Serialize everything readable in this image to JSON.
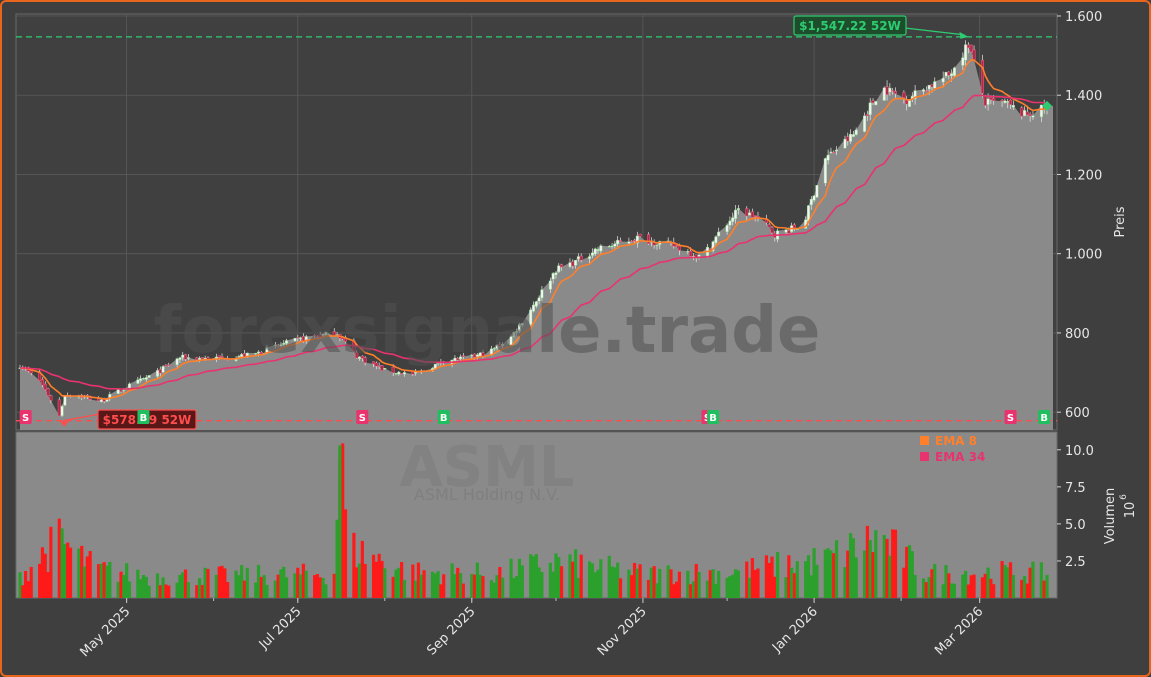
{
  "chart_data": {
    "type": "candlestick",
    "ticker": "ASML",
    "company": "ASML Holding N.V.",
    "watermark": "forexsignale.trade",
    "price_axis": {
      "label": "Preis",
      "ylim": [
        555,
        1605
      ],
      "ticks": [
        600,
        800,
        1000,
        1200,
        1400,
        1600
      ],
      "tick_labels": [
        "600",
        "800",
        "1.000",
        "1.200",
        "1.400",
        "1.600"
      ]
    },
    "volume_axis": {
      "label": "Volumen",
      "multiplier_label": "10",
      "multiplier_exp": "6",
      "ylim": [
        0,
        11.2
      ],
      "ticks": [
        2.5,
        5.0,
        7.5,
        10.0
      ],
      "tick_labels": [
        "2.5",
        "5.0",
        "7.5",
        "10.0"
      ]
    },
    "x_axis": {
      "start": "2025-03-24",
      "end": "2026-03-25",
      "ticks": [
        {
          "date": "2025-05-01",
          "label": "May 2025"
        },
        {
          "date": "2025-07-01",
          "label": "Jul 2025"
        },
        {
          "date": "2025-09-01",
          "label": "Sep 2025"
        },
        {
          "date": "2025-11-01",
          "label": "Nov 2025"
        },
        {
          "date": "2026-01-01",
          "label": "Jan 2026"
        },
        {
          "date": "2026-03-01",
          "label": "Mar 2026"
        }
      ]
    },
    "high_52w": {
      "value": 1547.22,
      "label": "$1,547.22 52W",
      "date": "2026-02-25"
    },
    "low_52w": {
      "value": 578.49,
      "label": "$578.49 52W",
      "date": "2025-04-07"
    },
    "price_keyframes": [
      [
        "2025-03-24",
        718
      ],
      [
        "2025-03-31",
        680
      ],
      [
        "2025-04-04",
        632
      ],
      [
        "2025-04-07",
        590
      ],
      [
        "2025-04-09",
        645
      ],
      [
        "2025-04-15",
        640
      ],
      [
        "2025-04-22",
        628
      ],
      [
        "2025-04-30",
        660
      ],
      [
        "2025-05-12",
        700
      ],
      [
        "2025-05-20",
        738
      ],
      [
        "2025-06-01",
        735
      ],
      [
        "2025-06-15",
        745
      ],
      [
        "2025-06-25",
        770
      ],
      [
        "2025-07-05",
        790
      ],
      [
        "2025-07-15",
        800
      ],
      [
        "2025-07-22",
        742
      ],
      [
        "2025-08-01",
        705
      ],
      [
        "2025-08-12",
        695
      ],
      [
        "2025-08-22",
        730
      ],
      [
        "2025-09-01",
        738
      ],
      [
        "2025-09-08",
        755
      ],
      [
        "2025-09-15",
        790
      ],
      [
        "2025-09-22",
        860
      ],
      [
        "2025-10-01",
        960
      ],
      [
        "2025-10-08",
        980
      ],
      [
        "2025-10-15",
        1010
      ],
      [
        "2025-10-30",
        1040
      ],
      [
        "2025-11-12",
        1020
      ],
      [
        "2025-11-22",
        990
      ],
      [
        "2025-11-28",
        1050
      ],
      [
        "2025-12-05",
        1110
      ],
      [
        "2025-12-12",
        1090
      ],
      [
        "2025-12-18",
        1050
      ],
      [
        "2025-12-28",
        1070
      ],
      [
        "2026-01-05",
        1240
      ],
      [
        "2026-01-15",
        1300
      ],
      [
        "2026-01-25",
        1420
      ],
      [
        "2026-02-03",
        1390
      ],
      [
        "2026-02-10",
        1420
      ],
      [
        "2026-02-18",
        1450
      ],
      [
        "2026-02-25",
        1530
      ],
      [
        "2026-03-03",
        1380
      ],
      [
        "2026-03-10",
        1380
      ],
      [
        "2026-03-17",
        1350
      ],
      [
        "2026-03-25",
        1368
      ]
    ],
    "volume_profile": [
      [
        "2025-03-24",
        1.4
      ],
      [
        "2025-04-07",
        3.8
      ],
      [
        "2025-04-20",
        1.9
      ],
      [
        "2025-05-10",
        1.4
      ],
      [
        "2025-06-15",
        1.5
      ],
      [
        "2025-07-14",
        1.6
      ],
      [
        "2025-07-16",
        10.3
      ],
      [
        "2025-07-19",
        3.3
      ],
      [
        "2025-08-10",
        1.7
      ],
      [
        "2025-09-10",
        1.6
      ],
      [
        "2025-10-01",
        2.4
      ],
      [
        "2025-11-01",
        1.6
      ],
      [
        "2025-12-01",
        1.7
      ],
      [
        "2026-01-05",
        2.5
      ],
      [
        "2026-01-24",
        4.0
      ],
      [
        "2026-02-10",
        1.6
      ],
      [
        "2026-03-10",
        1.7
      ],
      [
        "2026-03-25",
        1.6
      ]
    ],
    "ema_series": [
      {
        "name": "EMA 8",
        "period": 8,
        "color": "#ff7f2a"
      },
      {
        "name": "EMA 34",
        "period": 34,
        "color": "#e8336e"
      }
    ],
    "signals": [
      {
        "date": "2025-03-26",
        "type": "S",
        "color": "#e8336e"
      },
      {
        "date": "2025-05-07",
        "type": "B",
        "color": "#1fbf5f"
      },
      {
        "date": "2025-07-24",
        "type": "S",
        "color": "#e8336e"
      },
      {
        "date": "2025-08-22",
        "type": "B",
        "color": "#1fbf5f"
      },
      {
        "date": "2025-11-24",
        "type": "S",
        "color": "#e8336e"
      },
      {
        "date": "2025-11-26",
        "type": "B",
        "color": "#1fbf5f"
      },
      {
        "date": "2026-03-12",
        "type": "S",
        "color": "#e8336e"
      },
      {
        "date": "2026-03-24",
        "type": "B",
        "color": "#1fbf5f"
      }
    ],
    "colors": {
      "up": "#2ca02c",
      "down": "#ff1a1a",
      "grid": "#5a5a5a",
      "bg": "#404040",
      "area": "#8a8a8a"
    }
  }
}
